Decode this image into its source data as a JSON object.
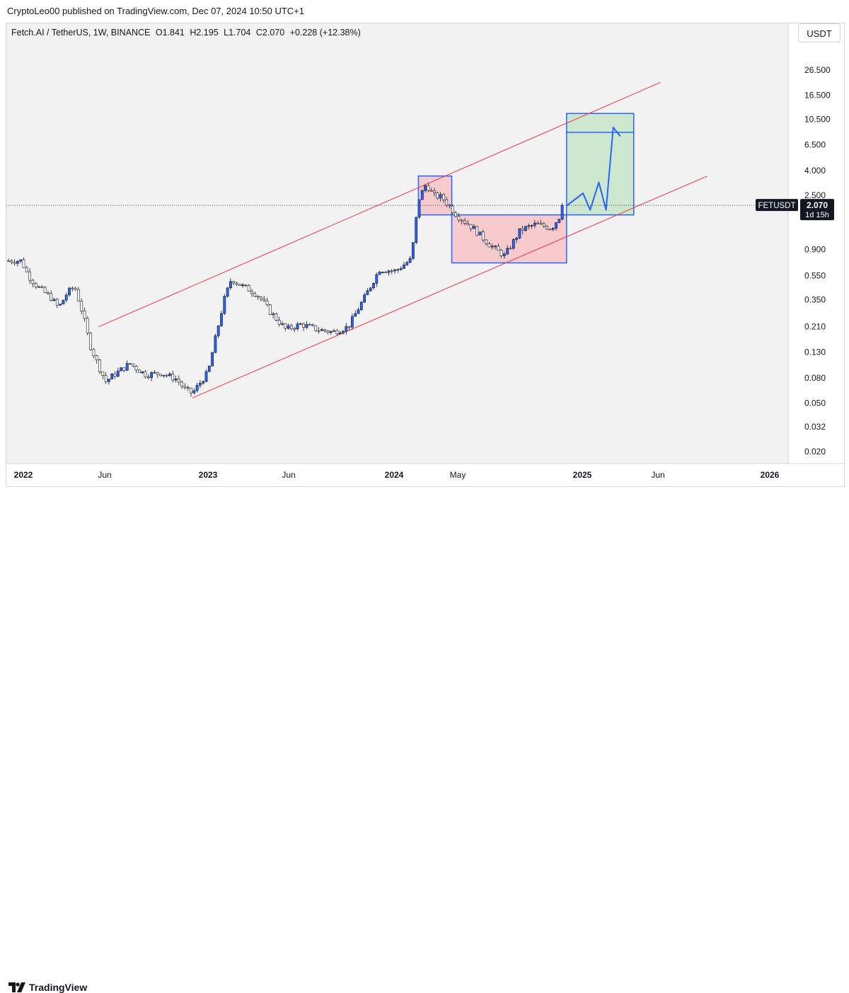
{
  "header": {
    "publish_line": "CryptoLeo00 published on TradingView.com, Dec 07, 2024 10:50 UTC+1"
  },
  "legend": {
    "symbol": "Fetch.AI / TetherUS, 1W, BINANCE",
    "open": "O1.841",
    "high": "H2.195",
    "low": "L1.704",
    "close": "C2.070",
    "change": "+0.228 (+12.38%)"
  },
  "currency_button": "USDT",
  "price_tag": {
    "symbol": "FETUSDT",
    "price": "2.070",
    "countdown": "1d 15h",
    "bg": "#131722"
  },
  "colors": {
    "up_candle": "#2962ff",
    "down_candle": "#ffffff",
    "wick": "#131722",
    "channel": "#f23645",
    "box_red_fill": "#f7c5c9",
    "box_green_fill": "#c8e6c9",
    "box_border": "#2962ff",
    "projection": "#2962ff",
    "chart_bg": "#f2f2f2"
  },
  "footer": {
    "logo_text": "TradingView"
  },
  "chart_data": {
    "type": "candlestick",
    "title": "Fetch.AI / TetherUS, 1W, BINANCE",
    "scale": "log",
    "xlabel": "",
    "ylabel": "USDT",
    "x_ticks": [
      "2022",
      "Jun",
      "2023",
      "Jun",
      "2024",
      "May",
      "2025",
      "Jun",
      "2026"
    ],
    "y_ticks": [
      "26.500",
      "16.500",
      "10.500",
      "6.500",
      "4.000",
      "2.500",
      "0.900",
      "0.550",
      "0.350",
      "0.210",
      "0.130",
      "0.080",
      "0.050",
      "0.032",
      "0.020"
    ],
    "last_price": 2.07,
    "series": [
      {
        "name": "FETUSDT weekly close (approx.)",
        "points": [
          [
            "2022-01",
            0.73
          ],
          [
            "2022-01-15",
            0.55
          ],
          [
            "2022-02",
            0.45
          ],
          [
            "2022-03",
            0.36
          ],
          [
            "2022-03-15",
            0.3
          ],
          [
            "2022-04",
            0.4
          ],
          [
            "2022-04-15",
            0.45
          ],
          [
            "2022-05",
            0.27
          ],
          [
            "2022-05-15",
            0.15
          ],
          [
            "2022-06",
            0.1
          ],
          [
            "2022-06-15",
            0.075
          ],
          [
            "2022-07",
            0.085
          ],
          [
            "2022-08",
            0.105
          ],
          [
            "2022-08-15",
            0.095
          ],
          [
            "2022-09",
            0.085
          ],
          [
            "2022-10",
            0.088
          ],
          [
            "2022-11",
            0.078
          ],
          [
            "2022-11-15",
            0.065
          ],
          [
            "2022-12",
            0.06
          ],
          [
            "2023-01",
            0.09
          ],
          [
            "2023-01-15",
            0.17
          ],
          [
            "2023-02",
            0.35
          ],
          [
            "2023-02-15",
            0.52
          ],
          [
            "2023-03",
            0.47
          ],
          [
            "2023-04",
            0.4
          ],
          [
            "2023-04-15",
            0.35
          ],
          [
            "2023-05",
            0.28
          ],
          [
            "2023-06",
            0.2
          ],
          [
            "2023-07",
            0.22
          ],
          [
            "2023-08",
            0.2
          ],
          [
            "2023-09",
            0.19
          ],
          [
            "2023-10",
            0.21
          ],
          [
            "2023-11",
            0.36
          ],
          [
            "2023-12",
            0.62
          ],
          [
            "2024-01",
            0.6
          ],
          [
            "2024-02",
            0.75
          ],
          [
            "2024-02-15",
            2.3
          ],
          [
            "2024-03",
            3.1
          ],
          [
            "2024-03-15",
            2.5
          ],
          [
            "2024-04",
            2.4
          ],
          [
            "2024-05",
            1.7
          ],
          [
            "2024-06",
            1.35
          ],
          [
            "2024-07",
            1.0
          ],
          [
            "2024-08",
            0.8
          ],
          [
            "2024-09",
            1.3
          ],
          [
            "2024-10",
            1.45
          ],
          [
            "2024-11",
            1.35
          ],
          [
            "2024-12",
            2.07
          ]
        ]
      },
      {
        "name": "Projection path",
        "points": [
          [
            "2024-12",
            2.07
          ],
          [
            "2025-01",
            2.6
          ],
          [
            "2025-01-15",
            1.9
          ],
          [
            "2025-02",
            3.2
          ],
          [
            "2025-02-15",
            1.9
          ],
          [
            "2025-03",
            9.0
          ],
          [
            "2025-03-15",
            7.6
          ]
        ]
      }
    ],
    "annotations": [
      {
        "type": "ascending-channel",
        "color": "red",
        "upper": [
          [
            "2022-06",
            0.21
          ],
          [
            "2025-06",
            21.0
          ]
        ],
        "lower": [
          [
            "2022-12",
            0.055
          ],
          [
            "2025-09",
            3.6
          ]
        ]
      },
      {
        "type": "box",
        "label": "",
        "fill": "red",
        "from": [
          "2024-02-15",
          3.6
        ],
        "to": [
          "2024-04-20",
          1.73
        ]
      },
      {
        "type": "box",
        "label": "",
        "fill": "red",
        "from": [
          "2024-04-20",
          1.73
        ],
        "to": [
          "2024-11-30",
          0.7
        ]
      },
      {
        "type": "box",
        "label": "",
        "fill": "green",
        "from": [
          "2024-11-30",
          11.7
        ],
        "to": [
          "2025-04-10",
          1.73
        ]
      },
      {
        "type": "hline",
        "value": 8.2,
        "from": "2024-11-30",
        "to": "2025-04-10"
      }
    ]
  }
}
